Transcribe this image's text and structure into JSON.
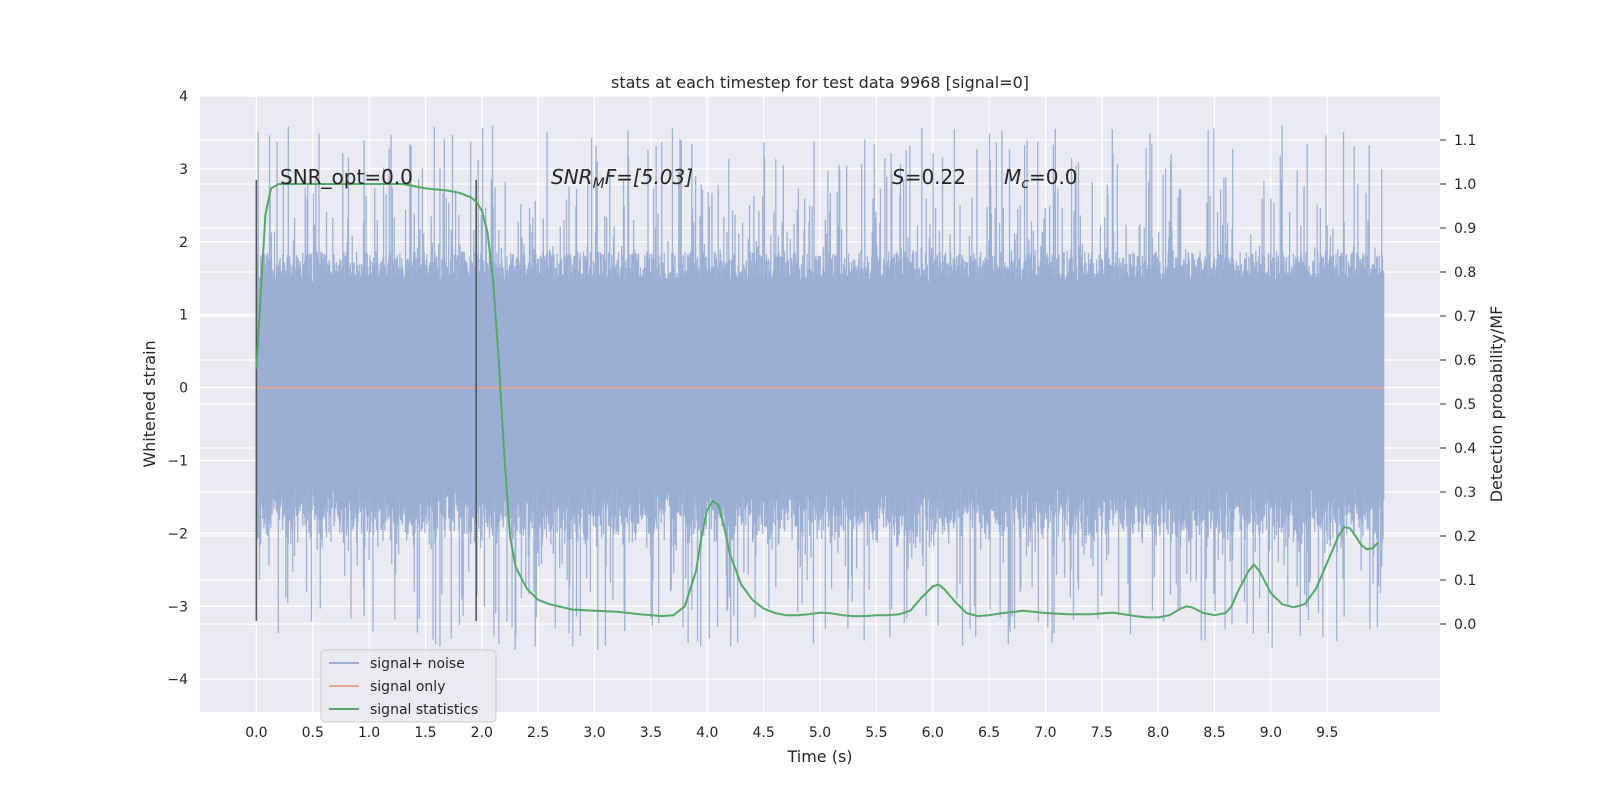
{
  "chart_data": {
    "type": "line",
    "title": "stats at each timestep for test data 9968 [signal=0]",
    "xlabel": "Time (s)",
    "ylabel_left": "Whitened strain",
    "ylabel_right": "Detection probability/MF",
    "xlim": [
      -0.5,
      10.5
    ],
    "ylim_left": [
      -4.45,
      4.0
    ],
    "ylim_right": [
      -0.2,
      1.2
    ],
    "xticks": [
      "0.0",
      "0.5",
      "1.0",
      "1.5",
      "2.0",
      "2.5",
      "3.0",
      "3.5",
      "4.0",
      "4.5",
      "5.0",
      "5.5",
      "6.0",
      "6.5",
      "7.0",
      "7.5",
      "8.0",
      "8.5",
      "9.0",
      "9.5"
    ],
    "xtick_values": [
      0.0,
      0.5,
      1.0,
      1.5,
      2.0,
      2.5,
      3.0,
      3.5,
      4.0,
      4.5,
      5.0,
      5.5,
      6.0,
      6.5,
      7.0,
      7.5,
      8.0,
      8.5,
      9.0,
      9.5
    ],
    "yticks_left": [
      "−4",
      "−3",
      "−2",
      "−1",
      "0",
      "1",
      "2",
      "3",
      "4"
    ],
    "ytick_values_left": [
      -4,
      -3,
      -2,
      -1,
      0,
      1,
      2,
      3,
      4
    ],
    "yticks_right": [
      "0.0",
      "0.1",
      "0.2",
      "0.3",
      "0.4",
      "0.5",
      "0.6",
      "0.7",
      "0.8",
      "0.9",
      "1.0",
      "1.1"
    ],
    "ytick_values_right": [
      0.0,
      0.1,
      0.2,
      0.3,
      0.4,
      0.5,
      0.6,
      0.7,
      0.8,
      0.9,
      1.0,
      1.1
    ],
    "grid": true,
    "legend_position": "lower-left",
    "annotations": {
      "snr_opt": "SNR_opt=0.0",
      "snr_mf_main": "SNR",
      "snr_mf_sub": "M",
      "snr_mf_rest": "F=[5.03]",
      "s_main": "S",
      "s_rest": "=0.22",
      "mc_main": "M",
      "mc_sub": "c",
      "mc_rest": "=0.0"
    },
    "vertical_markers_x": [
      0.0,
      1.95
    ],
    "vertical_markers_range": [
      -3.2,
      2.85
    ],
    "series": [
      {
        "name": "signal+ noise",
        "color": "#9aaed4",
        "axis": "left",
        "x_range": [
          0.0,
          10.0
        ],
        "typical_range": [
          -1.7,
          1.7
        ],
        "peak_range": [
          -3.6,
          3.6
        ]
      },
      {
        "name": "signal only",
        "color": "#e8a68b",
        "axis": "left",
        "x": [
          0.0,
          10.0
        ],
        "y": [
          0.0,
          0.0
        ]
      },
      {
        "name": "signal statistics",
        "color": "#55a868",
        "axis": "right",
        "x": [
          0.0,
          0.08,
          0.13,
          0.2,
          0.3,
          0.5,
          0.8,
          1.0,
          1.3,
          1.5,
          1.7,
          1.8,
          1.9,
          1.95,
          2.0,
          2.05,
          2.1,
          2.15,
          2.2,
          2.25,
          2.3,
          2.4,
          2.5,
          2.6,
          2.8,
          3.0,
          3.2,
          3.4,
          3.6,
          3.7,
          3.8,
          3.9,
          3.95,
          4.0,
          4.05,
          4.1,
          4.15,
          4.2,
          4.3,
          4.4,
          4.5,
          4.6,
          4.7,
          4.8,
          4.9,
          5.0,
          5.1,
          5.2,
          5.3,
          5.4,
          5.5,
          5.6,
          5.7,
          5.8,
          5.9,
          6.0,
          6.05,
          6.1,
          6.2,
          6.3,
          6.4,
          6.5,
          6.6,
          6.8,
          7.0,
          7.2,
          7.4,
          7.6,
          7.8,
          7.9,
          8.0,
          8.1,
          8.2,
          8.25,
          8.3,
          8.4,
          8.5,
          8.6,
          8.65,
          8.7,
          8.8,
          8.85,
          8.9,
          9.0,
          9.1,
          9.2,
          9.3,
          9.4,
          9.5,
          9.6,
          9.65,
          9.7,
          9.75,
          9.8,
          9.85,
          9.9,
          9.95
        ],
        "y": [
          0.58,
          0.93,
          0.99,
          1.0,
          1.0,
          1.0,
          1.0,
          1.0,
          1.0,
          0.99,
          0.985,
          0.98,
          0.97,
          0.96,
          0.94,
          0.89,
          0.78,
          0.6,
          0.38,
          0.2,
          0.13,
          0.08,
          0.055,
          0.045,
          0.033,
          0.03,
          0.028,
          0.022,
          0.018,
          0.02,
          0.04,
          0.12,
          0.2,
          0.26,
          0.28,
          0.27,
          0.22,
          0.16,
          0.09,
          0.055,
          0.035,
          0.025,
          0.02,
          0.02,
          0.022,
          0.026,
          0.024,
          0.02,
          0.018,
          0.018,
          0.02,
          0.02,
          0.022,
          0.03,
          0.06,
          0.085,
          0.09,
          0.08,
          0.05,
          0.025,
          0.018,
          0.02,
          0.024,
          0.03,
          0.025,
          0.022,
          0.022,
          0.026,
          0.018,
          0.015,
          0.015,
          0.02,
          0.035,
          0.04,
          0.038,
          0.025,
          0.02,
          0.025,
          0.04,
          0.07,
          0.12,
          0.135,
          0.12,
          0.07,
          0.045,
          0.038,
          0.045,
          0.08,
          0.14,
          0.2,
          0.22,
          0.218,
          0.2,
          0.18,
          0.17,
          0.172,
          0.185
        ]
      }
    ]
  }
}
